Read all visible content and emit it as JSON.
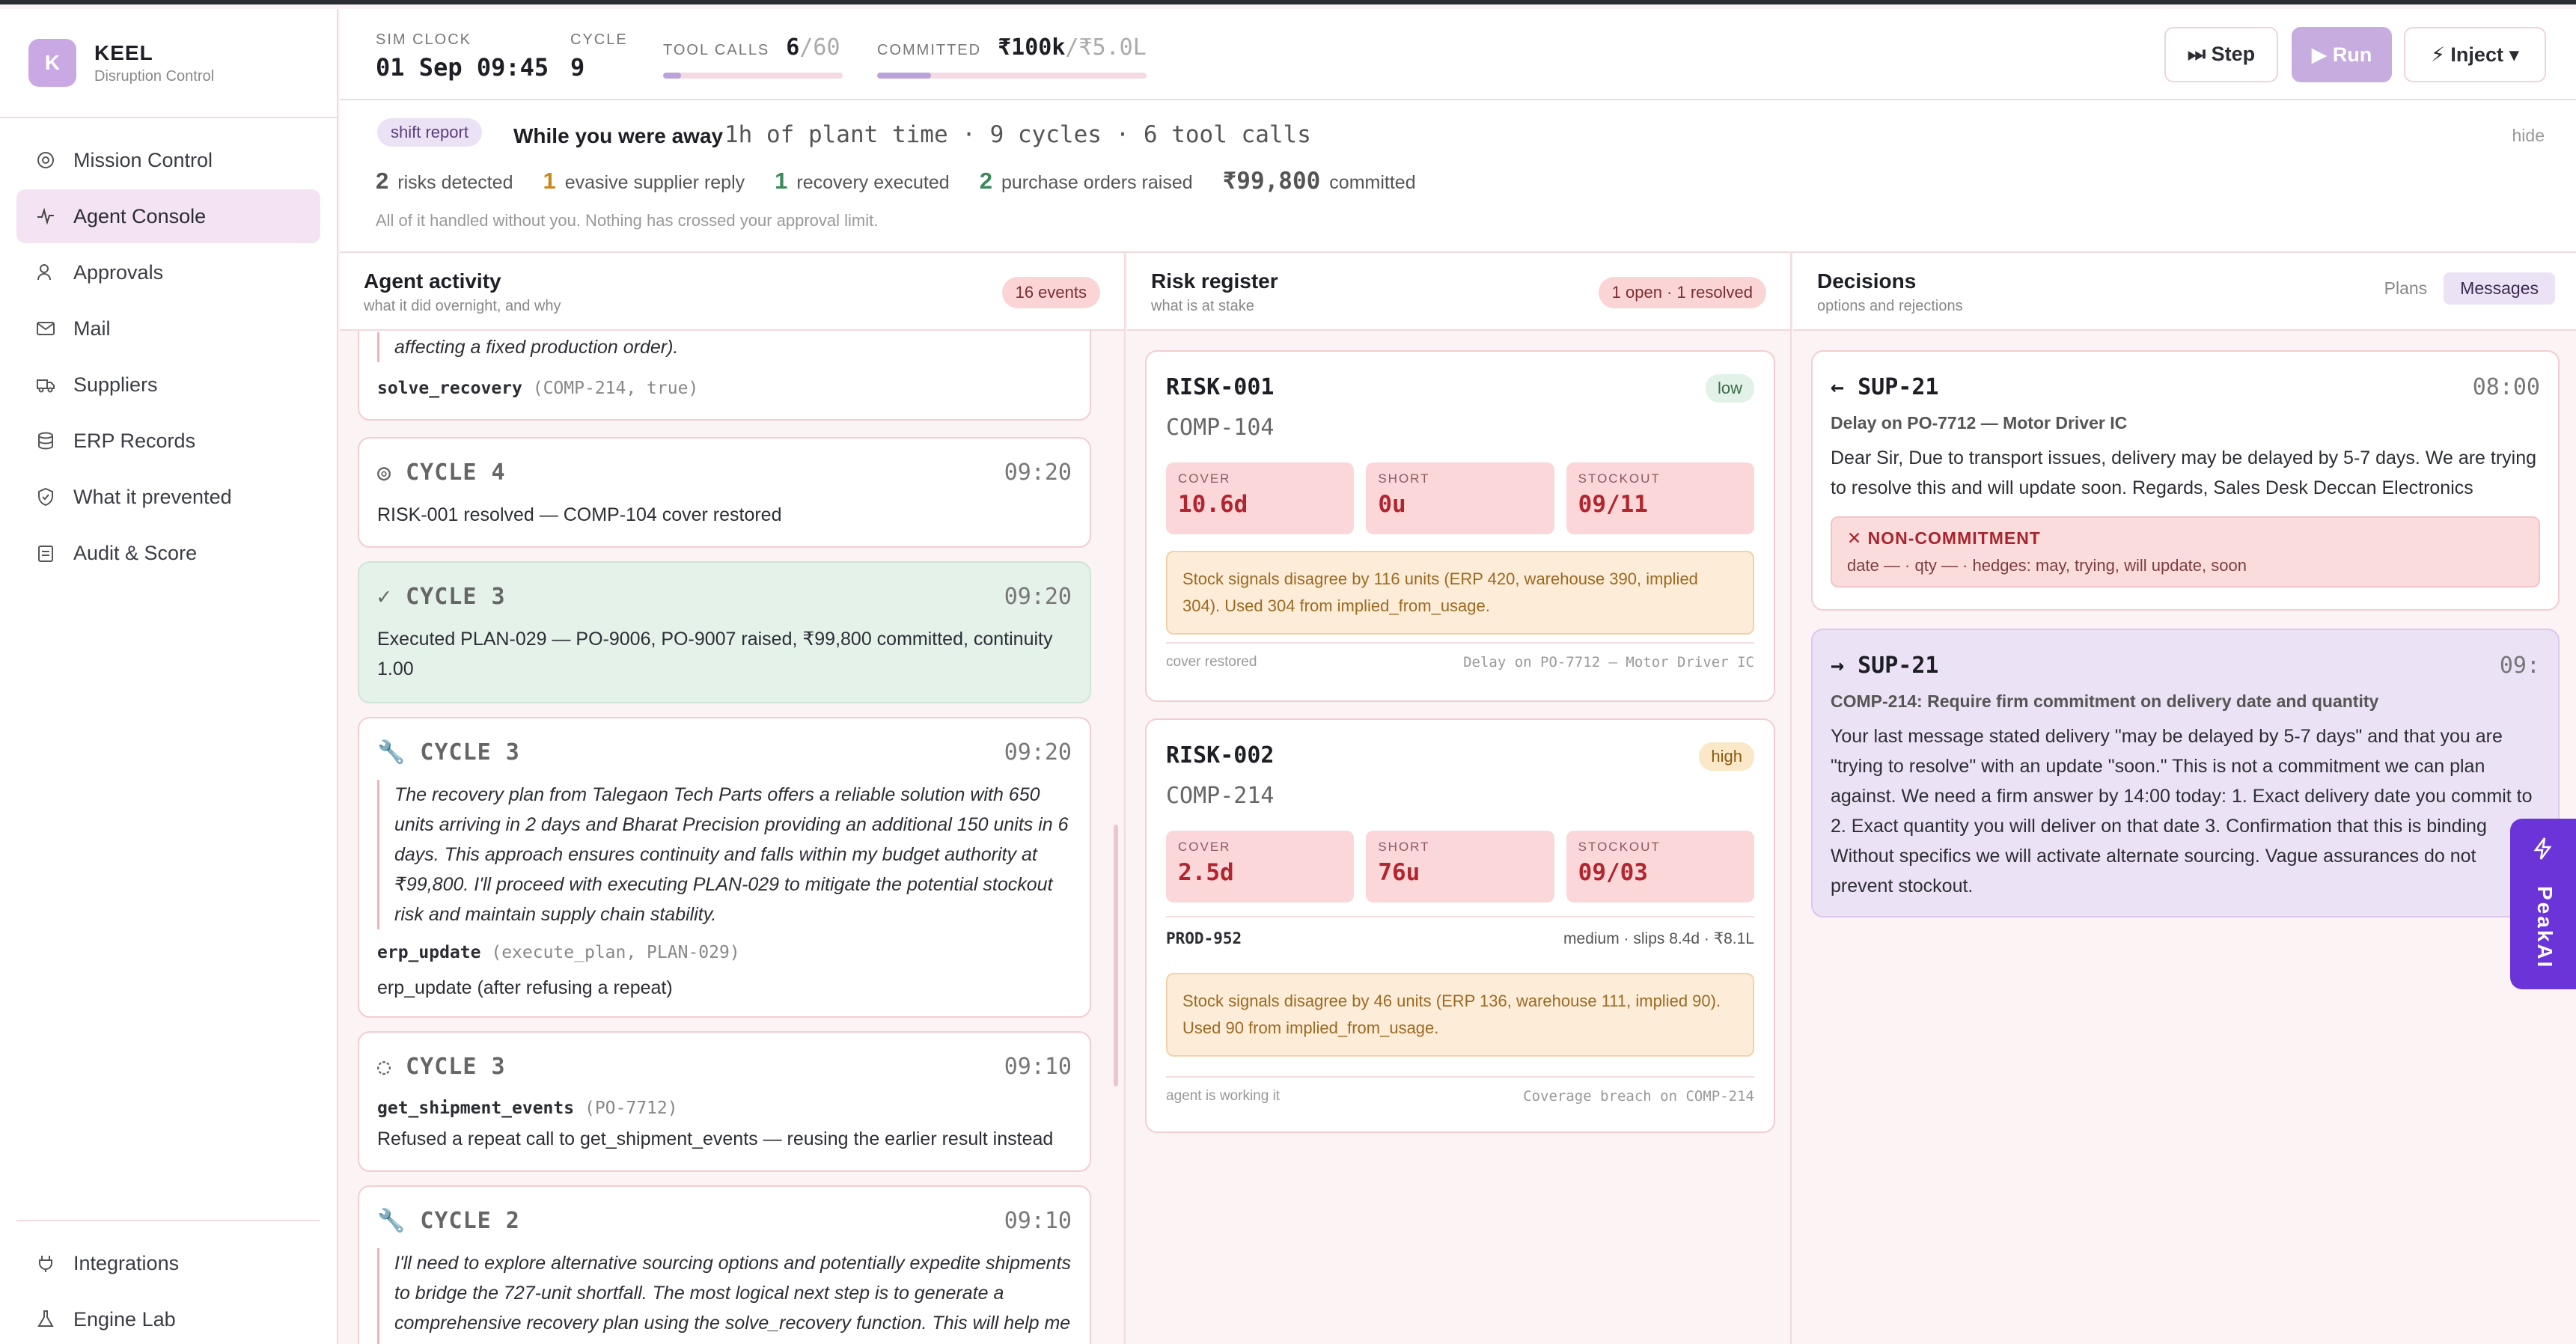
{
  "brand": {
    "initial": "K",
    "name": "KEEL",
    "subtitle": "Disruption Control"
  },
  "nav": {
    "items": [
      {
        "label": "Mission Control",
        "icon": "target-icon"
      },
      {
        "label": "Agent Console",
        "icon": "activity-icon"
      },
      {
        "label": "Approvals",
        "icon": "user-check-icon"
      },
      {
        "label": "Mail",
        "icon": "mail-icon"
      },
      {
        "label": "Suppliers",
        "icon": "truck-icon"
      },
      {
        "label": "ERP Records",
        "icon": "database-icon"
      },
      {
        "label": "What it prevented",
        "icon": "shield-icon"
      },
      {
        "label": "Audit & Score",
        "icon": "clipboard-icon"
      }
    ],
    "bottom": [
      {
        "label": "Integrations",
        "icon": "plug-icon"
      },
      {
        "label": "Engine Lab",
        "icon": "flask-icon"
      }
    ]
  },
  "topbar": {
    "sim_clock_label": "SIM CLOCK",
    "sim_clock": "01 Sep 09:45",
    "cycle_label": "CYCLE",
    "cycle": "9",
    "tool_calls_label": "TOOL CALLS",
    "tool_calls_used": "6",
    "tool_calls_max": "/60",
    "tool_calls_fraction": 0.1,
    "committed_label": "COMMITTED",
    "committed_used": "₹100k",
    "committed_max": "/₹5.0L",
    "committed_fraction": 0.2,
    "step_label": "⏭ Step",
    "run_label": "▶ Run",
    "inject_label": "⚡ Inject ▾"
  },
  "report": {
    "tag": "shift report",
    "title": "While you were away",
    "detail": "1h of plant time · 9 cycles · 6 tool calls",
    "hide": "hide",
    "metrics": [
      {
        "n": "2",
        "label": "risks detected",
        "color": "#1d1f24"
      },
      {
        "n": "1",
        "label": "evasive supplier reply",
        "color": "#c78a1e"
      },
      {
        "n": "1",
        "label": "recovery executed",
        "color": "#3a8a5a"
      },
      {
        "n": "2",
        "label": "purchase orders raised",
        "color": "#3a8a5a"
      }
    ],
    "committed_value": "₹99,800",
    "committed_label": "committed",
    "note": "All of it handled without you. Nothing has crossed your approval limit."
  },
  "activity": {
    "title": "Agent activity",
    "subtitle": "what it did overnight, and why",
    "count": "16 events",
    "top_fragment": "affecting a fixed production order).",
    "top_tool": "solve_recovery",
    "top_args": "(COMP-214, true)",
    "events": [
      {
        "head": "◎ CYCLE 4",
        "time": "09:20",
        "text": "RISK-001 resolved — COMP-104 cover restored"
      },
      {
        "head": "✓ CYCLE 3",
        "time": "09:20",
        "text": "Executed PLAN-029 — PO-9006, PO-9007 raised, ₹99,800 committed, continuity 1.00"
      },
      {
        "head": "🔧 CYCLE 3",
        "time": "09:20",
        "text": "The recovery plan from Talegaon Tech Parts offers a reliable solution with 650 units arriving in 2 days and Bharat Precision providing an additional 150 units in 6 days. This approach ensures continuity and falls within my budget authority at ₹99,800. I'll proceed with executing PLAN-029 to mitigate the potential stockout risk and maintain supply chain stability.",
        "tool": "erp_update",
        "args": "(execute_plan, PLAN-029)",
        "result": "erp_update (after refusing a repeat)"
      },
      {
        "head": "◌ CYCLE 3",
        "time": "09:10",
        "tool": "get_shipment_events",
        "args": "(PO-7712)",
        "result": "Refused a repeat call to get_shipment_events — reusing the earlier result instead"
      },
      {
        "head": "🔧 CYCLE 2",
        "time": "09:10",
        "text": "I'll need to explore alternative sourcing options and potentially expedite shipments to bridge the 727-unit shortfall. The most logical next step is to generate a comprehensive recovery plan using the solve_recovery function. This will help me identify the most cost-effective and reliable approach to"
      }
    ]
  },
  "risks": {
    "title": "Risk register",
    "subtitle": "what is at stake",
    "count": "1 open · 1 resolved",
    "items": [
      {
        "id": "RISK-001",
        "comp": "COMP-104",
        "level": "low",
        "cover": "10.6d",
        "short": "0u",
        "stockout": "09/11",
        "warning": "Stock signals disagree by 116 units (ERP 420, warehouse 390, implied 304). Used 304 from implied_from_usage.",
        "foot_left": "cover restored",
        "foot_right": "Delay on PO-7712 — Motor Driver IC"
      },
      {
        "id": "RISK-002",
        "comp": "COMP-214",
        "level": "high",
        "cover": "2.5d",
        "short": "76u",
        "stockout": "09/03",
        "prod": "PROD-952",
        "prod_detail": "medium · slips 8.4d · ₹8.1L",
        "warning": "Stock signals disagree by 46 units (ERP 136, warehouse 111, implied 90). Used 90 from implied_from_usage.",
        "foot_left": "agent is working it",
        "foot_right": "Coverage breach on COMP-214"
      }
    ],
    "labels": {
      "cover": "COVER",
      "short": "SHORT",
      "stockout": "STOCKOUT"
    }
  },
  "decisions": {
    "title": "Decisions",
    "subtitle": "options and rejections",
    "tabs": [
      "Plans",
      "Messages"
    ],
    "messages": [
      {
        "head": "← SUP-21",
        "time": "08:00",
        "subject": "Delay on PO-7712 — Motor Driver IC",
        "body": "Dear Sir, Due to transport issues, delivery may be delayed by 5-7 days. We are trying to resolve this and will update soon. Regards, Sales Desk Deccan Electronics",
        "flag_title": "✕ NON-COMMITMENT",
        "flag_detail": "date — · qty — · hedges: may, trying, will update, soon"
      },
      {
        "head": "→ SUP-21",
        "time": "09:",
        "subject": "COMP-214: Require firm commitment on delivery date and quantity",
        "body": "Your last message stated delivery \"may be delayed by 5-7 days\" and that you are \"trying to resolve\" with an update \"soon.\" This is not a commitment we can plan against. We need a firm answer by 14:00 today: 1. Exact delivery date you commit to 2. Exact quantity you will deliver on that date 3. Confirmation that this is binding Without specifics we will activate alternate sourcing. Vague assurances do not prevent stockout."
      }
    ]
  },
  "peak": {
    "label": "PeakAI",
    "icon": "bolt-icon"
  }
}
